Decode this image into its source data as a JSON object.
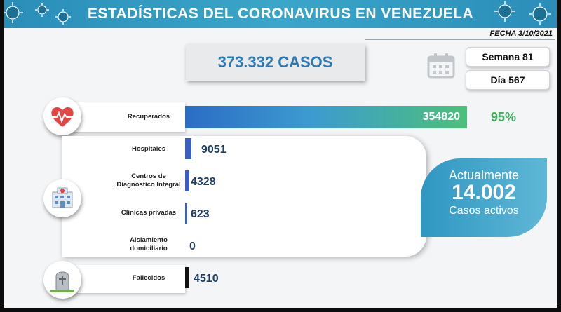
{
  "header": {
    "title": "ESTADÍSTICAS DEL CORONAVIRUS EN VENEZUELA"
  },
  "date": "FECHA 3/10/2021",
  "total_cases": "373.332 CASOS",
  "week": "Semana 81",
  "day": "Día 567",
  "recovered": {
    "label": "Recuperados",
    "value": 354820,
    "percent": "95%"
  },
  "categories": [
    {
      "label": "Hospitales",
      "value": 9051
    },
    {
      "label": "Centros de Diagnóstico Integral",
      "value": 4328
    },
    {
      "label": "Clínicas privadas",
      "value": 623
    },
    {
      "label": "Aislamiento domiciliario",
      "value": 0
    }
  ],
  "deaths": {
    "label": "Fallecidos",
    "value": 4510
  },
  "active": {
    "line1": "Actualmente",
    "value": "14.002",
    "line2": "Casos activos"
  },
  "colors": {
    "banner": "#2a8db8",
    "recovered_bar_start": "#2b6cc4",
    "recovered_bar_end": "#4cc07a",
    "small_bar": "#3b5fc0",
    "death_bar": "#111111",
    "percent": "#3fae5c"
  },
  "icons": {
    "recovered": "heart-pulse-icon",
    "hospital": "hospital-icon",
    "deaths": "tombstone-icon",
    "calendar": "calendar-icon",
    "virus": "virus-icon"
  },
  "chart_data": {
    "type": "bar",
    "orientation": "horizontal",
    "categories": [
      "Recuperados",
      "Hospitales",
      "Centros de Diagnóstico Integral",
      "Clínicas privadas",
      "Aislamiento domiciliario",
      "Fallecidos"
    ],
    "values": [
      354820,
      9051,
      4328,
      623,
      0,
      4510
    ]
  }
}
